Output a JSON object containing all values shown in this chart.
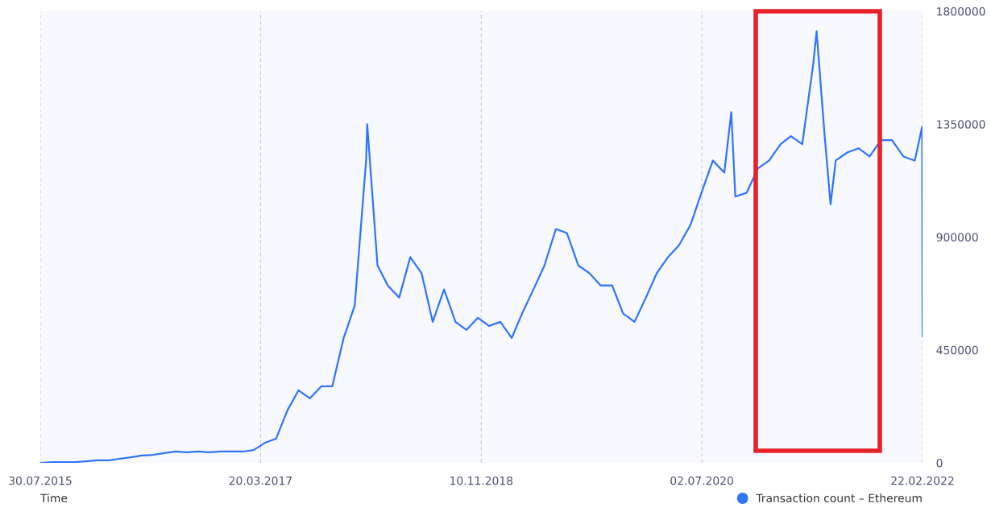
{
  "chart_data": {
    "type": "line",
    "xlabel": "Time",
    "x": [
      "2015-08",
      "2015-09",
      "2015-10",
      "2015-11",
      "2015-12",
      "2016-01",
      "2016-02",
      "2016-03",
      "2016-04",
      "2016-05",
      "2016-06",
      "2016-07",
      "2016-08",
      "2016-09",
      "2016-10",
      "2016-11",
      "2016-12",
      "2017-01",
      "2017-02",
      "2017-03",
      "2017-04",
      "2017-05",
      "2017-06",
      "2017-07",
      "2017-08",
      "2017-09",
      "2017-10",
      "2017-11",
      "2017-12",
      "2018-01",
      "2018-01-04",
      "2018-02",
      "2018-03",
      "2018-04",
      "2018-05",
      "2018-06",
      "2018-07",
      "2018-08",
      "2018-09",
      "2018-10",
      "2018-11",
      "2018-12",
      "2019-01",
      "2019-02",
      "2019-03",
      "2019-04",
      "2019-05",
      "2019-06",
      "2019-07",
      "2019-08",
      "2019-09",
      "2019-10",
      "2019-11",
      "2019-12",
      "2020-01",
      "2020-02",
      "2020-03",
      "2020-04",
      "2020-05",
      "2020-06",
      "2020-07",
      "2020-08",
      "2020-09",
      "2020-09-20",
      "2020-10",
      "2020-11",
      "2020-12",
      "2021-01",
      "2021-02",
      "2021-03",
      "2021-04",
      "2021-05",
      "2021-05-10",
      "2021-06",
      "2021-06-17",
      "2021-07",
      "2021-08",
      "2021-09",
      "2021-10",
      "2021-11",
      "2021-12",
      "2022-01",
      "2022-02",
      "2022-02-21",
      "2022-02-22"
    ],
    "series": [
      {
        "name": "Transaction count – Ethereum",
        "color": "#2e74ff",
        "values": [
          0,
          3000,
          3000,
          3000,
          6000,
          10000,
          10000,
          16000,
          22000,
          29000,
          32000,
          39000,
          45000,
          42000,
          45000,
          42000,
          45000,
          45000,
          45000,
          51000,
          80000,
          96000,
          209000,
          289000,
          257000,
          305000,
          305000,
          498000,
          627000,
          1205000,
          1350000,
          787000,
          707000,
          659000,
          820000,
          755000,
          562000,
          691000,
          562000,
          530000,
          578000,
          546000,
          562000,
          498000,
          595000,
          691000,
          787000,
          932000,
          916000,
          787000,
          755000,
          707000,
          707000,
          595000,
          562000,
          659000,
          755000,
          820000,
          868000,
          948000,
          1077000,
          1205000,
          1157000,
          1398000,
          1061000,
          1077000,
          1173000,
          1205000,
          1270000,
          1302000,
          1270000,
          1591000,
          1720000,
          1302000,
          1030000,
          1205000,
          1237000,
          1254000,
          1221000,
          1286000,
          1286000,
          1221000,
          1205000,
          1340000,
          505000
        ]
      }
    ],
    "xlim": [
      "2015-07-30",
      "2022-02-22"
    ],
    "xticks": [
      {
        "value": "2015-07-30",
        "label": "30.07.2015"
      },
      {
        "value": "2017-03-20",
        "label": "20.03.2017"
      },
      {
        "value": "2018-11-10",
        "label": "10.11.2018"
      },
      {
        "value": "2020-07-02",
        "label": "02.07.2020"
      },
      {
        "value": "2022-02-22",
        "label": "22.02.2022"
      }
    ],
    "ylim": [
      0,
      1800000
    ],
    "yticks": [
      0,
      450000,
      900000,
      1350000,
      1800000
    ],
    "grid": "x",
    "legend": "bottom right",
    "marker": "none",
    "line_style": "solid"
  }
}
